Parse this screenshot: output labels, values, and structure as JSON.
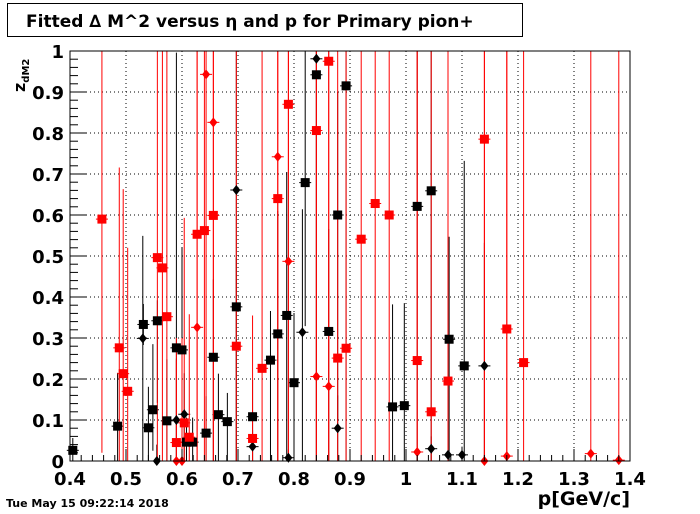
{
  "title": "Fitted ∆ M^2 versus η and p for Primary pion+",
  "timestamp": "Tue May 15 09:22:14 2018",
  "chart_data": {
    "type": "scatter",
    "title": "Fitted ∆ M^2 versus η and p for Primary pion+",
    "xlabel": "p[GeV/c]",
    "ylabel": "z",
    "ylabel_sub": "dM2",
    "xlim": [
      0.4,
      1.4
    ],
    "ylim": [
      0,
      1
    ],
    "x_ticks": [
      "0.4",
      "0.5",
      "0.6",
      "0.7",
      "0.8",
      "0.9",
      "1",
      "1.1",
      "1.2",
      "1.3",
      "1.4"
    ],
    "y_ticks": [
      "0",
      "0.1",
      "0.2",
      "0.3",
      "0.4",
      "0.5",
      "0.6",
      "0.7",
      "0.8",
      "0.9",
      "1"
    ],
    "grid": true,
    "series": [
      {
        "marker": "square",
        "color": "#000000",
        "points": [
          {
            "x": 0.405,
            "y": 0.026,
            "elo": 0.026,
            "ehi": 0.03
          },
          {
            "x": 0.485,
            "y": 0.085,
            "elo": 0.085,
            "ehi": 0.13
          },
          {
            "x": 0.531,
            "y": 0.333,
            "elo": 0.05,
            "ehi": 0.05
          },
          {
            "x": 0.54,
            "y": 0.081,
            "elo": 0.081,
            "ehi": 0.1
          },
          {
            "x": 0.548,
            "y": 0.125,
            "elo": 0.1,
            "ehi": 0.16
          },
          {
            "x": 0.556,
            "y": 0.342,
            "elo": 0.2,
            "ehi": 0.05
          },
          {
            "x": 0.573,
            "y": 0.098,
            "elo": 0.098,
            "ehi": 0.15
          },
          {
            "x": 0.59,
            "y": 0.276,
            "elo": 0.276,
            "ehi": 0.72
          },
          {
            "x": 0.6,
            "y": 0.271,
            "elo": 0.2,
            "ehi": 0.25
          },
          {
            "x": 0.608,
            "y": 0.046,
            "elo": 0.046,
            "ehi": 0.06
          },
          {
            "x": 0.619,
            "y": 0.046,
            "elo": 0.046,
            "ehi": 0.06
          },
          {
            "x": 0.643,
            "y": 0.068,
            "elo": 0.068,
            "ehi": 0.09
          },
          {
            "x": 0.656,
            "y": 0.253,
            "elo": 0.253,
            "ehi": 0.19
          },
          {
            "x": 0.665,
            "y": 0.113,
            "elo": 0.113,
            "ehi": 0.1
          },
          {
            "x": 0.681,
            "y": 0.096,
            "elo": 0.096,
            "ehi": 0.07
          },
          {
            "x": 0.697,
            "y": 0.376,
            "elo": 0.376,
            "ehi": 0.12
          },
          {
            "x": 0.726,
            "y": 0.108,
            "elo": 0.108,
            "ehi": 0.09
          },
          {
            "x": 0.758,
            "y": 0.246,
            "elo": 0.246,
            "ehi": 0.12
          },
          {
            "x": 0.771,
            "y": 0.31,
            "elo": 0.31,
            "ehi": 0.3
          },
          {
            "x": 0.787,
            "y": 0.355,
            "elo": 0.355,
            "ehi": 0.35
          },
          {
            "x": 0.8,
            "y": 0.191,
            "elo": 0.191,
            "ehi": 0.17
          },
          {
            "x": 0.82,
            "y": 0.679,
            "elo": 0.35,
            "ehi": 0.32
          },
          {
            "x": 0.84,
            "y": 0.942,
            "elo": 0.942,
            "ehi": 0.058
          },
          {
            "x": 0.862,
            "y": 0.316,
            "elo": 0.316,
            "ehi": 0.25
          },
          {
            "x": 0.878,
            "y": 0.6,
            "elo": 0.5,
            "ehi": 0.3
          },
          {
            "x": 0.893,
            "y": 0.915,
            "elo": 0.915,
            "ehi": 0.085
          },
          {
            "x": 0.976,
            "y": 0.132,
            "elo": 0.132,
            "ehi": 0.25
          },
          {
            "x": 0.997,
            "y": 0.135,
            "elo": 0.135,
            "ehi": 0.25
          },
          {
            "x": 1.02,
            "y": 0.621,
            "elo": 0.621,
            "ehi": 0.379
          },
          {
            "x": 1.045,
            "y": 0.659,
            "elo": 0.659,
            "ehi": 0.341
          },
          {
            "x": 1.077,
            "y": 0.297,
            "elo": 0.297,
            "ehi": 0.25
          },
          {
            "x": 1.104,
            "y": 0.232,
            "elo": 0.232,
            "ehi": 0.5
          }
        ]
      },
      {
        "marker": "diamond",
        "color": "#000000",
        "points": [
          {
            "x": 0.53,
            "y": 0.299,
            "elo": 0.299,
            "ehi": 0.25
          },
          {
            "x": 0.555,
            "y": 0.0,
            "elo": 0.0,
            "ehi": 0.04
          },
          {
            "x": 0.59,
            "y": 0.1,
            "elo": 0.1,
            "ehi": 0.15
          },
          {
            "x": 0.604,
            "y": 0.114,
            "elo": 0.114,
            "ehi": 0.1
          },
          {
            "x": 0.697,
            "y": 0.661,
            "elo": 0.661,
            "ehi": 0.339
          },
          {
            "x": 0.726,
            "y": 0.035,
            "elo": 0.035,
            "ehi": 0.04
          },
          {
            "x": 0.79,
            "y": 0.008,
            "elo": 0.008,
            "ehi": 0.02
          },
          {
            "x": 0.815,
            "y": 0.314,
            "elo": 0.314,
            "ehi": 0.3
          },
          {
            "x": 0.84,
            "y": 0.981,
            "elo": 0.981,
            "ehi": 0.019
          },
          {
            "x": 0.878,
            "y": 0.08,
            "elo": 0.08,
            "ehi": 0.08
          },
          {
            "x": 1.045,
            "y": 0.03,
            "elo": 0.03,
            "ehi": 0.03
          },
          {
            "x": 1.075,
            "y": 0.015,
            "elo": 0.015,
            "ehi": 0.02
          },
          {
            "x": 1.1,
            "y": 0.015,
            "elo": 0.015,
            "ehi": 0.02
          },
          {
            "x": 1.14,
            "y": 0.232,
            "elo": 0.232,
            "ehi": 0.3
          }
        ]
      },
      {
        "marker": "square",
        "color": "#ff0000",
        "points": [
          {
            "x": 0.457,
            "y": 0.59,
            "elo": 0.57,
            "ehi": 0.41
          },
          {
            "x": 0.488,
            "y": 0.276,
            "elo": 0.276,
            "ehi": 0.44
          },
          {
            "x": 0.495,
            "y": 0.213,
            "elo": 0.213,
            "ehi": 0.45
          },
          {
            "x": 0.503,
            "y": 0.17,
            "elo": 0.17,
            "ehi": 0.35
          },
          {
            "x": 0.556,
            "y": 0.496,
            "elo": 0.496,
            "ehi": 0.504
          },
          {
            "x": 0.565,
            "y": 0.471,
            "elo": 0.471,
            "ehi": 0.529
          },
          {
            "x": 0.573,
            "y": 0.352,
            "elo": 0.352,
            "ehi": 0.648
          },
          {
            "x": 0.59,
            "y": 0.045,
            "elo": 0.045,
            "ehi": 0.2
          },
          {
            "x": 0.604,
            "y": 0.093,
            "elo": 0.093,
            "ehi": 0.5
          },
          {
            "x": 0.613,
            "y": 0.058,
            "elo": 0.058,
            "ehi": 0.3
          },
          {
            "x": 0.627,
            "y": 0.553,
            "elo": 0.553,
            "ehi": 0.447
          },
          {
            "x": 0.64,
            "y": 0.562,
            "elo": 0.562,
            "ehi": 0.438
          },
          {
            "x": 0.656,
            "y": 0.599,
            "elo": 0.599,
            "ehi": 0.401
          },
          {
            "x": 0.697,
            "y": 0.28,
            "elo": 0.28,
            "ehi": 0.72
          },
          {
            "x": 0.726,
            "y": 0.055,
            "elo": 0.055,
            "ehi": 0.3
          },
          {
            "x": 0.743,
            "y": 0.226,
            "elo": 0.226,
            "ehi": 0.774
          },
          {
            "x": 0.771,
            "y": 0.64,
            "elo": 0.64,
            "ehi": 0.36
          },
          {
            "x": 0.79,
            "y": 0.87,
            "elo": 0.87,
            "ehi": 0.13
          },
          {
            "x": 0.84,
            "y": 0.806,
            "elo": 0.806,
            "ehi": 0.194
          },
          {
            "x": 0.862,
            "y": 0.975,
            "elo": 0.975,
            "ehi": 0.025
          },
          {
            "x": 0.878,
            "y": 0.251,
            "elo": 0.251,
            "ehi": 0.749
          },
          {
            "x": 0.893,
            "y": 0.275,
            "elo": 0.275,
            "ehi": 0.725
          },
          {
            "x": 0.92,
            "y": 0.541,
            "elo": 0.541,
            "ehi": 0.459
          },
          {
            "x": 0.945,
            "y": 0.628,
            "elo": 0.628,
            "ehi": 0.372
          },
          {
            "x": 0.97,
            "y": 0.6,
            "elo": 0.6,
            "ehi": 0.4
          },
          {
            "x": 1.02,
            "y": 0.245,
            "elo": 0.245,
            "ehi": 0.755
          },
          {
            "x": 1.045,
            "y": 0.12,
            "elo": 0.12,
            "ehi": 0.88
          },
          {
            "x": 1.075,
            "y": 0.195,
            "elo": 0.195,
            "ehi": 0.805
          },
          {
            "x": 1.14,
            "y": 0.785,
            "elo": 0.785,
            "ehi": 0.215
          },
          {
            "x": 1.18,
            "y": 0.322,
            "elo": 0.322,
            "ehi": 0.678
          },
          {
            "x": 1.21,
            "y": 0.24,
            "elo": 0.24,
            "ehi": 0.76
          }
        ]
      },
      {
        "marker": "diamond",
        "color": "#ff0000",
        "points": [
          {
            "x": 0.59,
            "y": 0.0,
            "elo": 0.0,
            "ehi": 0.3
          },
          {
            "x": 0.6,
            "y": 0.0,
            "elo": 0.0,
            "ehi": 0.3
          },
          {
            "x": 0.627,
            "y": 0.326,
            "elo": 0.326,
            "ehi": 0.674
          },
          {
            "x": 0.643,
            "y": 0.943,
            "elo": 0.943,
            "ehi": 0.057
          },
          {
            "x": 0.656,
            "y": 0.826,
            "elo": 0.826,
            "ehi": 0.174
          },
          {
            "x": 0.771,
            "y": 0.742,
            "elo": 0.742,
            "ehi": 0.258
          },
          {
            "x": 0.79,
            "y": 0.487,
            "elo": 0.487,
            "ehi": 0.513
          },
          {
            "x": 0.84,
            "y": 0.206,
            "elo": 0.206,
            "ehi": 0.794
          },
          {
            "x": 0.862,
            "y": 0.182,
            "elo": 0.182,
            "ehi": 0.818
          },
          {
            "x": 1.02,
            "y": 0.022,
            "elo": 0.022,
            "ehi": 0.978
          },
          {
            "x": 1.14,
            "y": 0.0,
            "elo": 0.0,
            "ehi": 1.0
          },
          {
            "x": 1.18,
            "y": 0.012,
            "elo": 0.012,
            "ehi": 0.988
          },
          {
            "x": 1.33,
            "y": 0.018,
            "elo": 0.018,
            "ehi": 0.982
          },
          {
            "x": 1.38,
            "y": 0.002,
            "elo": 0.002,
            "ehi": 0.998
          }
        ]
      }
    ]
  }
}
